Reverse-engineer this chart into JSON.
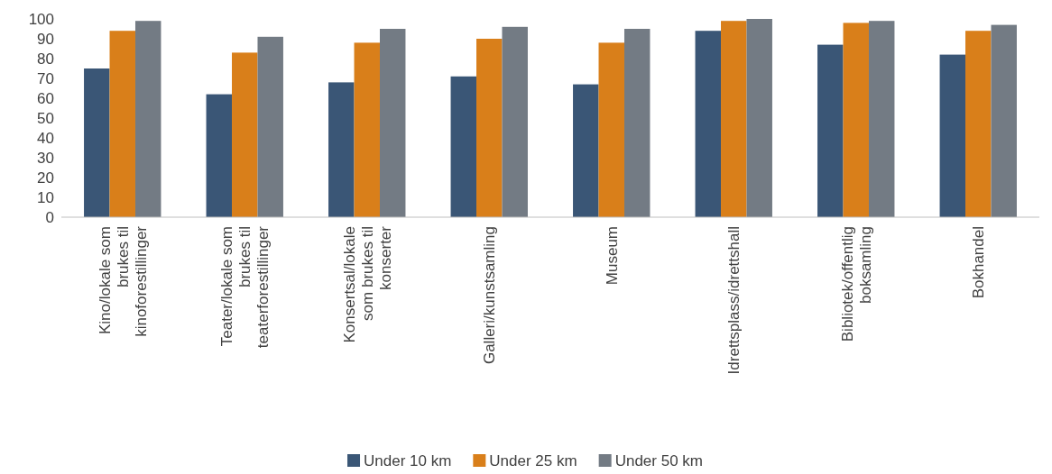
{
  "chart_data": {
    "type": "bar",
    "categories": [
      "Kino/lokale som brukes til kinoforestillinger",
      "Teater/lokale som brukes til teaterforestillinger",
      "Konsertsal/lokale som brukes til konserter",
      "Galleri/kunstsamling",
      "Museum",
      "Idrettsplass/idrettshall",
      "Bibliotek/offentlig boksamling",
      "Bokhandel"
    ],
    "series": [
      {
        "name": "Under 10 km",
        "color": "#3a5676",
        "values": [
          75,
          62,
          68,
          71,
          67,
          94,
          87,
          82
        ]
      },
      {
        "name": "Under 25 km",
        "color": "#d97f1a",
        "values": [
          94,
          83,
          88,
          90,
          88,
          99,
          98,
          94
        ]
      },
      {
        "name": "Under 50 km",
        "color": "#737b84",
        "values": [
          99,
          91,
          95,
          96,
          95,
          100,
          99,
          97
        ]
      }
    ],
    "ylim": [
      0,
      100
    ],
    "yticks": [
      0,
      10,
      20,
      30,
      40,
      50,
      60,
      70,
      80,
      90,
      100
    ],
    "grid": false,
    "legend": "bottom"
  }
}
